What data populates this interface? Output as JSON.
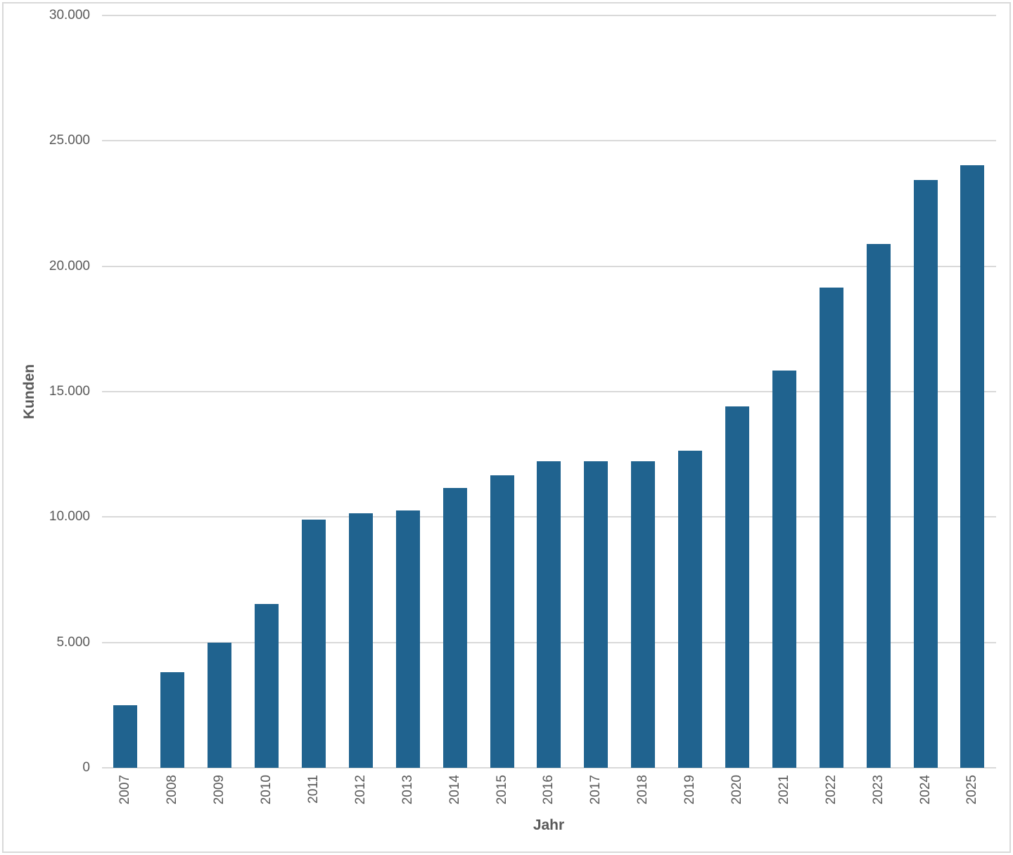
{
  "chart_data": {
    "type": "bar",
    "title": "",
    "categories": [
      "2007",
      "2008",
      "2009",
      "2010",
      "2011",
      "2012",
      "2013",
      "2014",
      "2015",
      "2016",
      "2017",
      "2018",
      "2019",
      "2020",
      "2021",
      "2022",
      "2023",
      "2024",
      "2025"
    ],
    "values": [
      2500,
      3800,
      5000,
      6530,
      9900,
      10160,
      10260,
      11160,
      11650,
      12230,
      12230,
      12230,
      12650,
      14400,
      15840,
      19160,
      20900,
      23440,
      24040
    ],
    "xlabel": "Jahr",
    "ylabel": "Kunden",
    "ylim": [
      0,
      30000
    ],
    "ytick_step": 5000,
    "ytick_labels": [
      "0",
      "5.000",
      "10.000",
      "15.000",
      "20.000",
      "25.000",
      "30.000"
    ],
    "legend": "none",
    "grid": true,
    "colors": {
      "bar": "#20638f",
      "gridline": "#d9d9d9",
      "text": "#595959",
      "frame_border": "#d9d9d9",
      "background": "#ffffff"
    }
  }
}
